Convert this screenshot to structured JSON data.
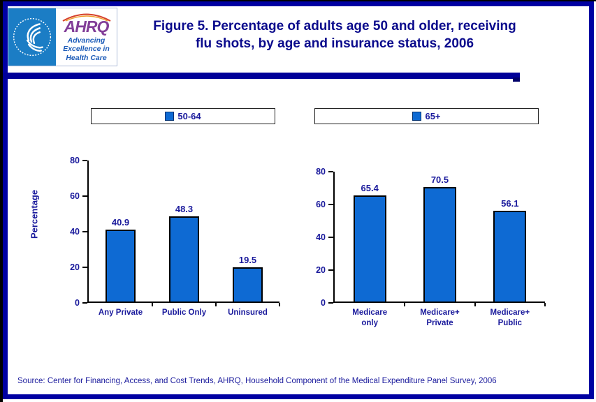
{
  "header": {
    "logo": {
      "acronym": "AHRQ",
      "tagline": "Advancing\nExcellence in\nHealth Care"
    },
    "title_line1": "Figure 5. Percentage of adults age 50 and older, receiving",
    "title_line2": "flu shots, by age and insurance status, 2006"
  },
  "chart_data": [
    {
      "type": "bar",
      "categories": [
        "Any Private",
        "Public Only",
        "Uninsured"
      ],
      "series": [
        {
          "name": "50-64",
          "values": [
            40.9,
            48.3,
            19.5
          ]
        }
      ],
      "title": "",
      "xlabel": "",
      "ylabel": "Percentage",
      "ylim": [
        0,
        80
      ],
      "yticks": [
        0,
        20,
        40,
        60,
        80
      ],
      "grid": false,
      "legend_position": "top",
      "bar_color": "#0E6AD3"
    },
    {
      "type": "bar",
      "categories": [
        "Medicare\nonly",
        "Medicare+\nPrivate",
        "Medicare+\nPublic"
      ],
      "series": [
        {
          "name": "65+",
          "values": [
            65.4,
            70.5,
            56.1
          ]
        }
      ],
      "title": "",
      "xlabel": "",
      "ylabel": "",
      "ylim": [
        0,
        80
      ],
      "yticks": [
        0,
        20,
        40,
        60,
        80
      ],
      "grid": false,
      "legend_position": "top",
      "bar_color": "#0E6AD3"
    }
  ],
  "footer": {
    "source": "Source: Center for Financing, Access, and Cost Trends, AHRQ, Household Component of the Medical Expenditure Panel Survey, 2006"
  },
  "colors": {
    "bar_blue": "#0E6AD3",
    "frame_blue": "#0000A2",
    "divider_navy": "#000099",
    "title_navy": "#0A0A8C",
    "text_navy": "#1A1A9C",
    "hhs_seal_blue": "#1B7DC5",
    "ahrq_purple": "#823E98",
    "tagline_blue": "#1C5BB8"
  }
}
